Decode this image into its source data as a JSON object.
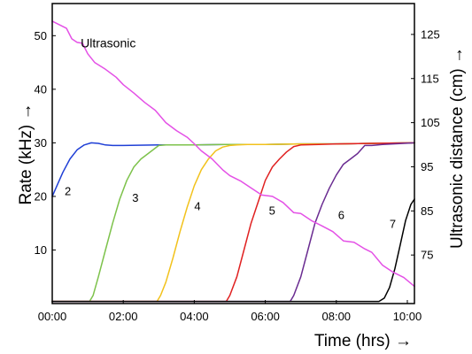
{
  "chart_data": {
    "type": "line",
    "xlabel": "Time (hrs) →",
    "ylabel": "Rate (kHz) →",
    "y2label": "Ultrasonic distance (cm) →",
    "xlim": [
      0,
      10.2
    ],
    "ylim": [
      0,
      56
    ],
    "y2lim": [
      64,
      132
    ],
    "x_ticks": [
      {
        "v": 0,
        "label": "00:00"
      },
      {
        "v": 2,
        "label": "02:00"
      },
      {
        "v": 4,
        "label": "04:00"
      },
      {
        "v": 6,
        "label": "06:00"
      },
      {
        "v": 8,
        "label": "08:00"
      },
      {
        "v": 10,
        "label": "10:00"
      }
    ],
    "y_ticks": [
      {
        "v": 10,
        "label": "10"
      },
      {
        "v": 20,
        "label": "20"
      },
      {
        "v": 30,
        "label": "30"
      },
      {
        "v": 40,
        "label": "40"
      },
      {
        "v": 50,
        "label": "50"
      }
    ],
    "y2_ticks": [
      {
        "v": 75,
        "label": "75"
      },
      {
        "v": 85,
        "label": "85"
      },
      {
        "v": 95,
        "label": "95"
      },
      {
        "v": 105,
        "label": "105"
      },
      {
        "v": 115,
        "label": "115"
      },
      {
        "v": 125,
        "label": "125"
      }
    ],
    "grid": false,
    "series": [
      {
        "name": "2",
        "color": "#1f3fd6",
        "axis": "left",
        "label_at": [
          0.35,
          20.2
        ],
        "x": [
          0,
          0.1,
          0.3,
          0.5,
          0.7,
          0.9,
          1.1,
          1.3,
          1.5,
          1.7,
          2,
          3,
          4,
          5,
          6,
          7,
          8,
          9,
          10.2
        ],
        "y": [
          20,
          21.5,
          24.5,
          27,
          28.7,
          29.6,
          30,
          29.9,
          29.6,
          29.5,
          29.5,
          29.6,
          29.6,
          29.7,
          29.7,
          29.8,
          29.8,
          29.9,
          30
        ]
      },
      {
        "name": "3",
        "color": "#7dc24b",
        "axis": "left",
        "label_at": [
          2.25,
          19
        ],
        "x": [
          0,
          1.05,
          1.15,
          1.3,
          1.5,
          1.7,
          1.9,
          2.1,
          2.3,
          2.5,
          2.7,
          2.9,
          3.0,
          3.2,
          3.5,
          4,
          5,
          6,
          7,
          8,
          9,
          10.2
        ],
        "y": [
          0.4,
          0.4,
          1.5,
          5,
          10,
          15,
          19.5,
          23,
          25.5,
          27,
          28,
          29,
          29.5,
          29.6,
          29.6,
          29.6,
          29.7,
          29.7,
          29.8,
          29.8,
          29.9,
          30
        ]
      },
      {
        "name": "4",
        "color": "#f2c21c",
        "axis": "left",
        "label_at": [
          4.0,
          17.4
        ],
        "x": [
          0,
          2.95,
          3.05,
          3.2,
          3.4,
          3.6,
          3.8,
          4.0,
          4.2,
          4.4,
          4.6,
          4.8,
          5.0,
          5.2,
          5.5,
          6,
          7,
          8,
          9,
          10.2
        ],
        "y": [
          0.4,
          0.4,
          1.5,
          4,
          8.5,
          13.5,
          18,
          22,
          25,
          27,
          28.5,
          29.2,
          29.5,
          29.6,
          29.7,
          29.7,
          29.8,
          29.8,
          29.9,
          30
        ]
      },
      {
        "name": "5",
        "color": "#e02121",
        "axis": "left",
        "label_at": [
          6.1,
          16.6
        ],
        "x": [
          0,
          4.9,
          5.0,
          5.2,
          5.4,
          5.6,
          5.8,
          6.0,
          6.2,
          6.4,
          6.6,
          6.8,
          7.0,
          7.5,
          8,
          9,
          10.2
        ],
        "y": [
          0.4,
          0.4,
          1.5,
          5,
          10,
          15,
          19,
          23,
          25.5,
          27,
          28.3,
          29.3,
          29.6,
          29.7,
          29.8,
          29.9,
          30
        ]
      },
      {
        "name": "6",
        "color": "#6a2c91",
        "axis": "left",
        "label_at": [
          8.05,
          15.8
        ],
        "x": [
          0,
          6.7,
          6.8,
          7.0,
          7.2,
          7.4,
          7.6,
          7.8,
          8.0,
          8.2,
          8.4,
          8.6,
          8.8,
          9.0,
          9.3,
          9.6,
          10.2
        ],
        "y": [
          0.4,
          0.4,
          1.5,
          5,
          10,
          15,
          18.5,
          21.5,
          24,
          26,
          27,
          28,
          29.5,
          29.5,
          29.7,
          29.8,
          30
        ]
      },
      {
        "name": "7",
        "color": "#000000",
        "axis": "left",
        "label_at": [
          9.5,
          14.1
        ],
        "x": [
          0,
          9.2,
          9.35,
          9.5,
          9.65,
          9.8,
          9.95,
          10.1,
          10.2
        ],
        "y": [
          0.4,
          0.4,
          1,
          3,
          6.5,
          11,
          15.5,
          18.5,
          19.5
        ]
      },
      {
        "name": "Ultrasonic",
        "color": "#e451e6",
        "axis": "right",
        "label_at": [
          0.8,
          47.8
        ],
        "x": [
          0,
          0.2,
          0.4,
          0.55,
          0.7,
          0.85,
          1.0,
          1.2,
          1.5,
          1.8,
          2.0,
          2.3,
          2.6,
          2.9,
          3.2,
          3.5,
          3.8,
          4.0,
          4.2,
          4.5,
          4.8,
          5.0,
          5.3,
          5.6,
          5.9,
          6.2,
          6.5,
          6.8,
          7.0,
          7.3,
          7.6,
          7.9,
          8.2,
          8.5,
          8.8,
          9.0,
          9.3,
          9.6,
          9.9,
          10.2
        ],
        "y": [
          128,
          127.2,
          126.4,
          124,
          123.2,
          123,
          120.6,
          118.6,
          117.1,
          115.3,
          113.6,
          111.7,
          109.6,
          107.8,
          105,
          103.2,
          101.7,
          100.2,
          98.6,
          96.8,
          94.3,
          93,
          91.8,
          90.2,
          88.6,
          88.3,
          86.9,
          84.6,
          84.4,
          82.8,
          81.6,
          80.3,
          78.2,
          77.9,
          76.4,
          75.6,
          72.7,
          71.1,
          69.9,
          67.9
        ]
      }
    ]
  }
}
